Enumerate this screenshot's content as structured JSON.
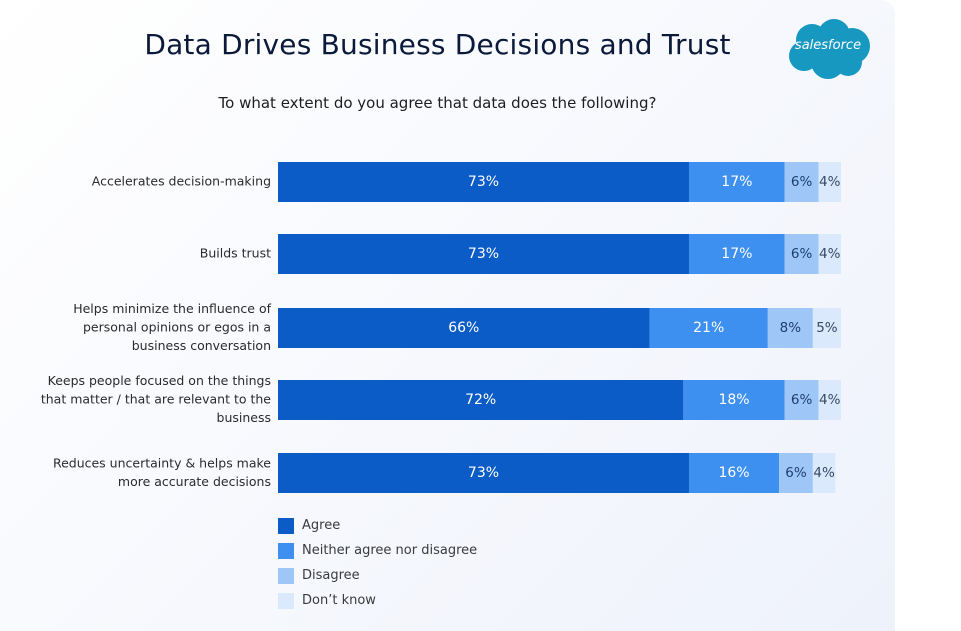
{
  "title": "Data Drives Business Decisions and Trust",
  "subtitle": "To what extent do you agree that data does the following?",
  "logo": {
    "text": "salesforce",
    "color": "#1798c1"
  },
  "colors": {
    "agree": "#0b5cc7",
    "neither": "#3d8ff0",
    "disagree": "#9ec7f7",
    "dont_know": "#dae9fb"
  },
  "chart_data": {
    "type": "bar",
    "orientation": "horizontal",
    "stacked": true,
    "categories": [
      [
        "Accelerates decision-making"
      ],
      [
        "Builds trust"
      ],
      [
        "Helps minimize the influence of",
        "personal opinions or egos in a",
        "business conversation"
      ],
      [
        "Keeps people focused on the things",
        "that matter / that are relevant to the",
        "business"
      ],
      [
        "Reduces uncertainty & helps make",
        "more accurate decisions"
      ]
    ],
    "series": [
      {
        "name": "Agree",
        "values": [
          73,
          73,
          66,
          72,
          73
        ],
        "color": "#0b5cc7"
      },
      {
        "name": "Neither agree nor disagree",
        "values": [
          17,
          17,
          21,
          18,
          16
        ],
        "color": "#3d8ff0"
      },
      {
        "name": "Disagree",
        "values": [
          6,
          6,
          8,
          6,
          6
        ],
        "color": "#9ec7f7"
      },
      {
        "name": "Don’t know",
        "values": [
          4,
          4,
          5,
          4,
          4
        ],
        "color": "#dae9fb"
      }
    ],
    "value_suffix": "%",
    "xlim": [
      0,
      100
    ],
    "grid": false,
    "legend_position": "bottom-left"
  },
  "legend": {
    "items": [
      {
        "label": "Agree",
        "color": "#0b5cc7"
      },
      {
        "label": "Neither agree nor disagree",
        "color": "#3d8ff0"
      },
      {
        "label": "Disagree",
        "color": "#9ec7f7"
      },
      {
        "label": "Don’t know",
        "color": "#dae9fb"
      }
    ]
  }
}
